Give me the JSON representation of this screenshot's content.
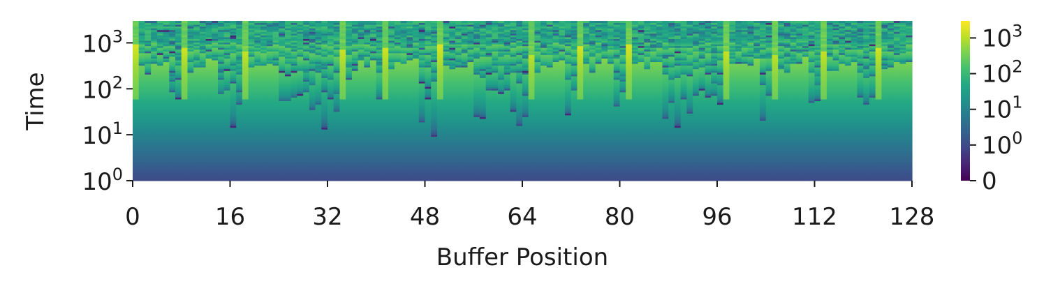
{
  "chart_data": {
    "type": "heatmap",
    "title": "",
    "xlabel": "Buffer Position",
    "ylabel": "Time",
    "x_ticks": [
      "0",
      "16",
      "32",
      "48",
      "64",
      "80",
      "96",
      "112",
      "128"
    ],
    "x_tick_values": [
      0,
      16,
      32,
      48,
      64,
      80,
      96,
      112,
      128
    ],
    "y_ticks": [
      {
        "base": "10",
        "exp": "0",
        "value": 1
      },
      {
        "base": "10",
        "exp": "1",
        "value": 10
      },
      {
        "base": "10",
        "exp": "2",
        "value": 100
      },
      {
        "base": "10",
        "exp": "3",
        "value": 1000
      }
    ],
    "y_scale": "symlog",
    "y_range": [
      1,
      3000
    ],
    "colorbar": {
      "colormap": "viridis",
      "scale": "symlog",
      "range": [
        0,
        3000
      ],
      "ticks": [
        {
          "base": "",
          "exp": "",
          "text": "0",
          "value": 0
        },
        {
          "base": "10",
          "exp": "0",
          "text": "",
          "value": 1
        },
        {
          "base": "10",
          "exp": "1",
          "text": "",
          "value": 10
        },
        {
          "base": "10",
          "exp": "2",
          "text": "",
          "value": 100
        },
        {
          "base": "10",
          "exp": "3",
          "text": "",
          "value": 1000
        }
      ]
    },
    "columns": 128,
    "reset_positions": [
      0,
      8,
      18,
      34,
      41,
      50,
      65,
      73,
      81,
      97,
      105,
      113,
      122
    ],
    "pattern": "value in each cell is the time elapsed since the buffer position was last written; large resets form bright diagonal wedges"
  }
}
